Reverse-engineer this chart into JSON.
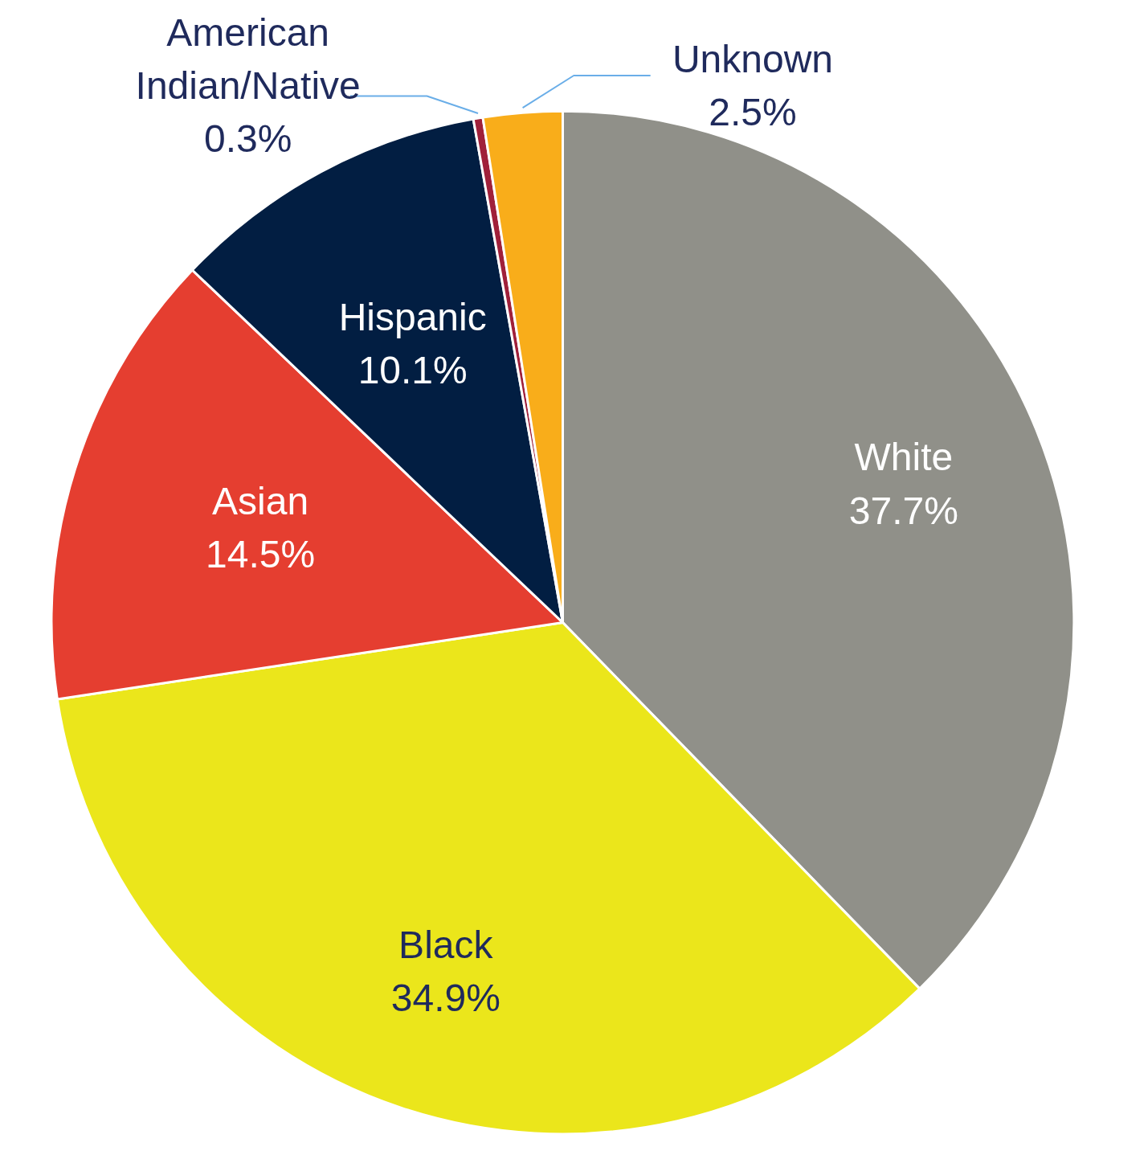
{
  "chart_data": {
    "type": "pie",
    "categories": [
      "White",
      "Black",
      "Asian",
      "Hispanic",
      "American Indian/Native",
      "Unknown"
    ],
    "values": [
      37.7,
      34.9,
      14.5,
      10.1,
      0.3,
      2.5
    ],
    "value_labels": [
      "37.7%",
      "34.9%",
      "14.5%",
      "10.1%",
      "0.3%",
      "2.5%"
    ],
    "colors": [
      "#909089",
      "#ebe61b",
      "#e53e30",
      "#021e42",
      "#a0203a",
      "#f9ad1a"
    ]
  }
}
